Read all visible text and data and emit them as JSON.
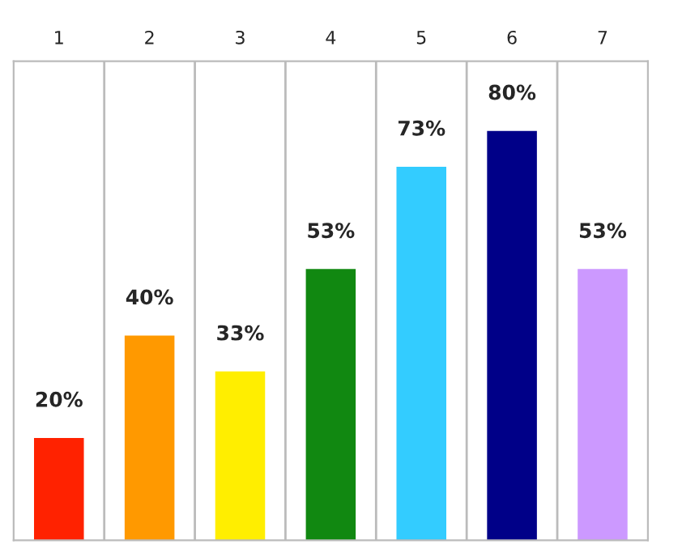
{
  "chart_data": {
    "type": "bar",
    "categories": [
      "1",
      "2",
      "3",
      "4",
      "5",
      "6",
      "7"
    ],
    "values": [
      20,
      40,
      33,
      53,
      73,
      80,
      53
    ],
    "colors": [
      "#ff2200",
      "#ff9900",
      "#ffee00",
      "#118811",
      "#33ccff",
      "#000088",
      "#cc99ff"
    ],
    "value_labels": [
      "20%",
      "40%",
      "33%",
      "53%",
      "73%",
      "80%",
      "53%"
    ],
    "grid": false,
    "legend": false
  }
}
